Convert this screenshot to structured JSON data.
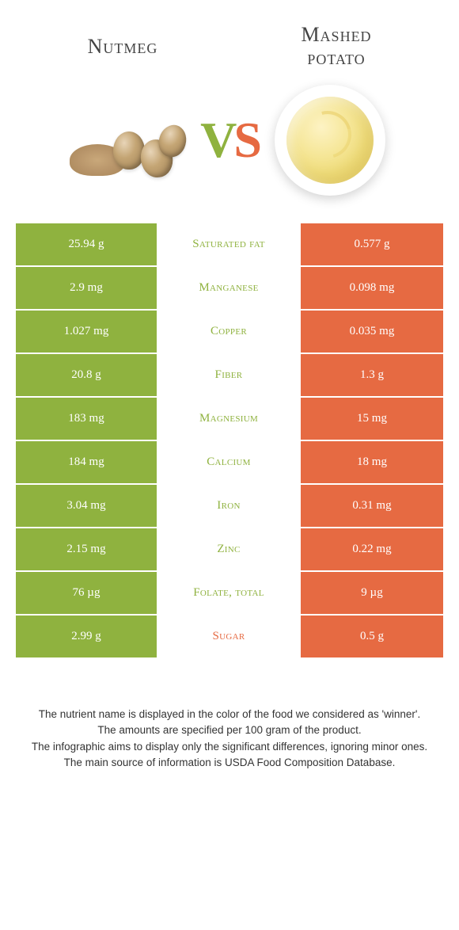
{
  "colors": {
    "left": "#8fb23f",
    "right": "#e66a42",
    "background": "#ffffff",
    "text_white": "#ffffff"
  },
  "header": {
    "left_title": "Nutmeg",
    "right_title_line1": "Mashed",
    "right_title_line2": "potato",
    "vs_v": "V",
    "vs_s": "S"
  },
  "rows": [
    {
      "left": "25.94 g",
      "label": "Saturated fat",
      "right": "0.577 g",
      "winner": "left"
    },
    {
      "left": "2.9 mg",
      "label": "Manganese",
      "right": "0.098 mg",
      "winner": "left"
    },
    {
      "left": "1.027 mg",
      "label": "Copper",
      "right": "0.035 mg",
      "winner": "left"
    },
    {
      "left": "20.8 g",
      "label": "Fiber",
      "right": "1.3 g",
      "winner": "left"
    },
    {
      "left": "183 mg",
      "label": "Magnesium",
      "right": "15 mg",
      "winner": "left"
    },
    {
      "left": "184 mg",
      "label": "Calcium",
      "right": "18 mg",
      "winner": "left"
    },
    {
      "left": "3.04 mg",
      "label": "Iron",
      "right": "0.31 mg",
      "winner": "left"
    },
    {
      "left": "2.15 mg",
      "label": "Zinc",
      "right": "0.22 mg",
      "winner": "left"
    },
    {
      "left": "76 µg",
      "label": "Folate, total",
      "right": "9 µg",
      "winner": "left"
    },
    {
      "left": "2.99 g",
      "label": "Sugar",
      "right": "0.5 g",
      "winner": "right"
    }
  ],
  "footer": {
    "line1": "The nutrient name is displayed in the color of the food we considered as 'winner'.",
    "line2": "The amounts are specified per 100 gram of the product.",
    "line3": "The infographic aims to display only the significant differences, ignoring minor ones.",
    "line4": "The main source of information is USDA Food Composition Database."
  }
}
